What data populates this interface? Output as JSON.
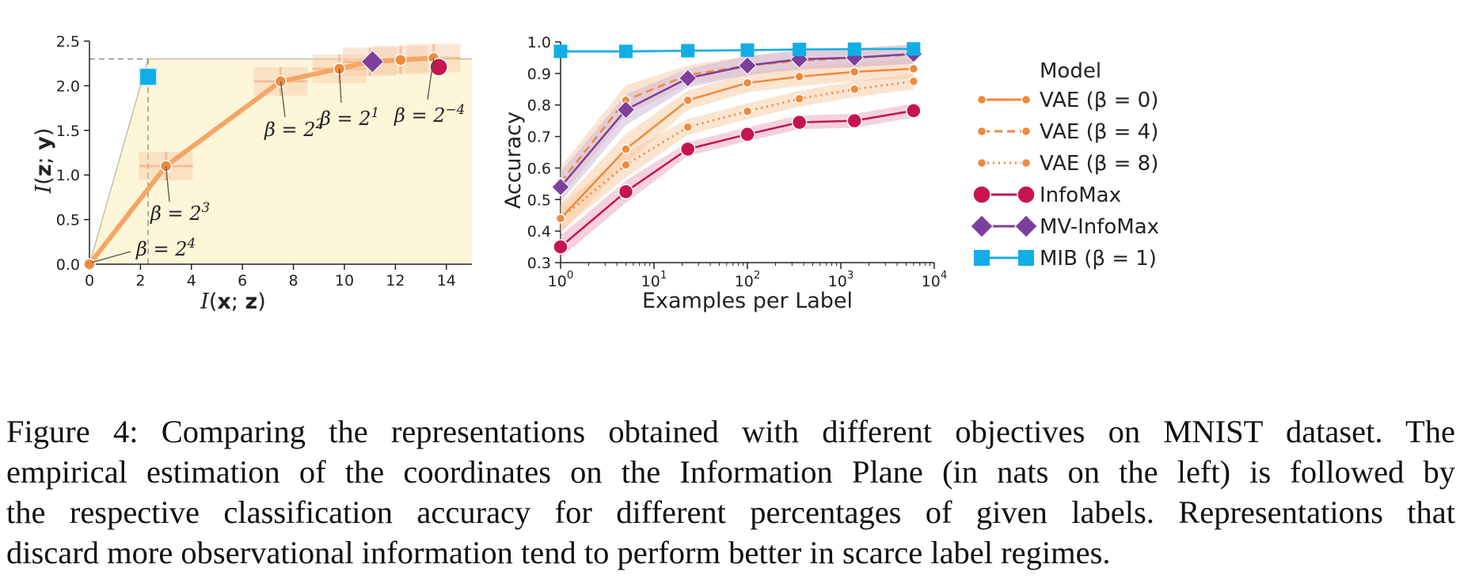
{
  "chart_data": [
    {
      "type": "line",
      "xlabel": "I(x; z)",
      "ylabel": "I(z; y)",
      "xlim": [
        0,
        15
      ],
      "ylim": [
        0,
        2.5
      ],
      "xticks": [
        "0",
        "2",
        "4",
        "6",
        "8",
        "10",
        "12",
        "14"
      ],
      "yticks": [
        "0.0",
        "0.5",
        "1.0",
        "1.5",
        "2.0",
        "2.5"
      ],
      "upper_bound": 2.3,
      "mib_ref_x": 2.3,
      "series": [
        {
          "key": "vae",
          "x": [
            0.0,
            3.0,
            7.5,
            9.8,
            11.0,
            12.2,
            13.5
          ],
          "y": [
            0.0,
            1.1,
            2.05,
            2.19,
            2.27,
            2.29,
            2.31
          ]
        },
        {
          "key": "infomax",
          "x": [
            13.7
          ],
          "y": [
            2.21
          ]
        },
        {
          "key": "mv_infomax",
          "x": [
            11.1
          ],
          "y": [
            2.27
          ]
        },
        {
          "key": "mib",
          "x": [
            2.3
          ],
          "y": [
            2.1
          ]
        }
      ],
      "annotations": [
        {
          "base": "β = 2",
          "exp": "4"
        },
        {
          "base": "β = 2",
          "exp": "3"
        },
        {
          "base": "β = 2",
          "exp": "2"
        },
        {
          "base": "β = 2",
          "exp": "1"
        },
        {
          "base": "β = 2",
          "exp": "−4"
        }
      ]
    },
    {
      "type": "line",
      "xlabel": "Examples per Label",
      "ylabel": "Accuracy",
      "xscale": "log",
      "xlim": [
        1,
        10000
      ],
      "ylim": [
        0.3,
        1.0
      ],
      "xticks": [
        {
          "base": "10",
          "exp": "0"
        },
        {
          "base": "10",
          "exp": "1"
        },
        {
          "base": "10",
          "exp": "2"
        },
        {
          "base": "10",
          "exp": "3"
        },
        {
          "base": "10",
          "exp": "4"
        }
      ],
      "yticks": [
        "0.3",
        "0.4",
        "0.5",
        "0.6",
        "0.7",
        "0.8",
        "0.9",
        "1.0"
      ],
      "x": [
        1,
        5,
        23,
        100,
        360,
        1400,
        6000
      ],
      "series": [
        {
          "key": "vae0",
          "values": [
            0.44,
            0.66,
            0.815,
            0.87,
            0.89,
            0.905,
            0.915
          ]
        },
        {
          "key": "vae4",
          "values": [
            0.555,
            0.815,
            0.895,
            0.925,
            0.94,
            0.95,
            0.96
          ]
        },
        {
          "key": "vae8",
          "values": [
            0.44,
            0.61,
            0.73,
            0.78,
            0.82,
            0.85,
            0.875
          ]
        },
        {
          "key": "infomax",
          "values": [
            0.35,
            0.525,
            0.66,
            0.707,
            0.745,
            0.75,
            0.782
          ]
        },
        {
          "key": "mv_infomax",
          "values": [
            0.54,
            0.785,
            0.885,
            0.925,
            0.945,
            0.95,
            0.962
          ]
        },
        {
          "key": "mib",
          "values": [
            0.97,
            0.97,
            0.972,
            0.974,
            0.976,
            0.977,
            0.978
          ]
        }
      ]
    }
  ],
  "legend": {
    "title": "Model",
    "entries": [
      {
        "key": "vae0",
        "label": "VAE (β = 0)"
      },
      {
        "key": "vae4",
        "label": "VAE (β = 4)"
      },
      {
        "key": "vae8",
        "label": "VAE (β = 8)"
      },
      {
        "key": "infomax",
        "label": "InfoMax"
      },
      {
        "key": "mv_infomax",
        "label": "MV-InfoMax"
      },
      {
        "key": "mib",
        "label": "MIB (β = 1)"
      }
    ]
  },
  "colors": {
    "vae": "#f08a3a",
    "vae_light": "#f5a566",
    "infomax": "#c8144d",
    "mv_infomax": "#7d3f9c",
    "mib": "#11aee6",
    "plane_fill": "#fdf6d8"
  },
  "caption": {
    "line1": "Figure 4: Comparing the representations obtained with different objectives on MNIST dataset. The",
    "line2": "empirical estimation of the coordinates on the Information Plane (in nats on the left) is followed by",
    "line3": "the respective classification accuracy for different percentages of given labels. Representations that",
    "line4": "discard more observational information tend to perform better in scarce label regimes."
  }
}
